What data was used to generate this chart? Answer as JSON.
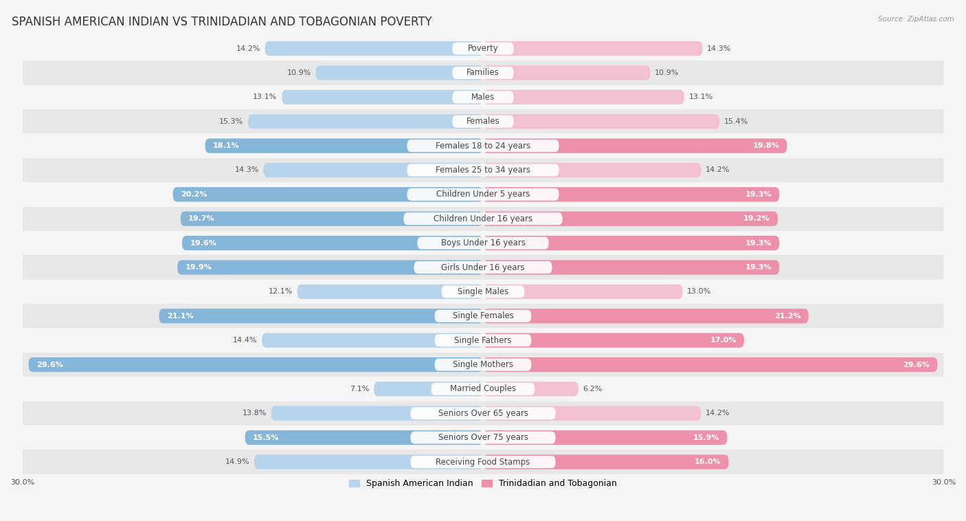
{
  "title": "SPANISH AMERICAN INDIAN VS TRINIDADIAN AND TOBAGONIAN POVERTY",
  "source": "Source: ZipAtlas.com",
  "categories": [
    "Poverty",
    "Families",
    "Males",
    "Females",
    "Females 18 to 24 years",
    "Females 25 to 34 years",
    "Children Under 5 years",
    "Children Under 16 years",
    "Boys Under 16 years",
    "Girls Under 16 years",
    "Single Males",
    "Single Females",
    "Single Fathers",
    "Single Mothers",
    "Married Couples",
    "Seniors Over 65 years",
    "Seniors Over 75 years",
    "Receiving Food Stamps"
  ],
  "left_values": [
    14.2,
    10.9,
    13.1,
    15.3,
    18.1,
    14.3,
    20.2,
    19.7,
    19.6,
    19.9,
    12.1,
    21.1,
    14.4,
    29.6,
    7.1,
    13.8,
    15.5,
    14.9
  ],
  "right_values": [
    14.3,
    10.9,
    13.1,
    15.4,
    19.8,
    14.2,
    19.3,
    19.2,
    19.3,
    19.3,
    13.0,
    21.2,
    17.0,
    29.6,
    6.2,
    14.2,
    15.9,
    16.0
  ],
  "left_color_lo": "#b8d4ea",
  "left_color_hi": "#85b5d9",
  "right_color_lo": "#f2c0cf",
  "right_color_hi": "#ec90ab",
  "highlight_threshold": 15.5,
  "xlim": 30.0,
  "legend_left": "Spanish American Indian",
  "legend_right": "Trinidadian and Tobagonian",
  "bg_color": "#f5f5f5",
  "row_alt_color": "#e8e8e8",
  "row_main_color": "#f5f5f5",
  "title_fontsize": 12,
  "label_fontsize": 8.5,
  "value_fontsize": 8.0
}
